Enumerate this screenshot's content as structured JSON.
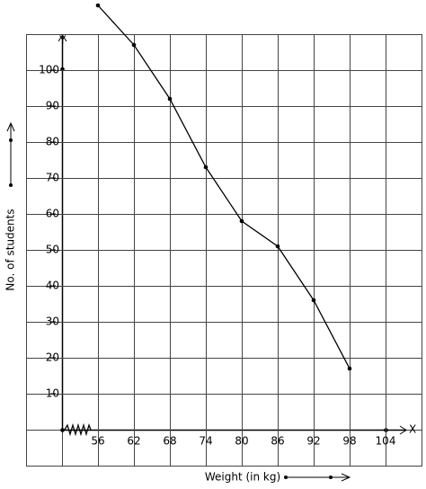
{
  "chart_data": {
    "type": "line",
    "x_label": "Weight (in kg)",
    "y_label": "No. of students",
    "x_axis_name": "X",
    "y_axis_name": "Y",
    "x": [
      56,
      62,
      68,
      74,
      80,
      86,
      92,
      98
    ],
    "series": [
      {
        "color": "#000000",
        "values": [
          118,
          107,
          92,
          73,
          58,
          51,
          36,
          17
        ]
      }
    ],
    "xlim": [
      44,
      110
    ],
    "xticks": [
      56,
      62,
      68,
      74,
      80,
      86,
      92,
      98,
      104
    ],
    "ylim": [
      -10,
      110
    ],
    "yticks": [
      10,
      20,
      30,
      40,
      50,
      60,
      70,
      80,
      90,
      100
    ],
    "grid": true
  }
}
